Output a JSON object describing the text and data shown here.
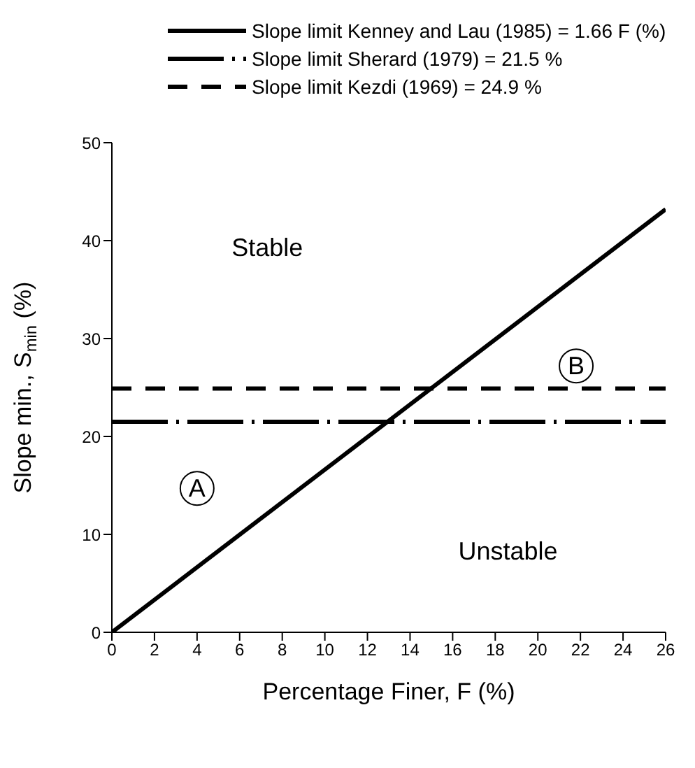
{
  "chart_data": {
    "type": "line",
    "xlabel": "Percentage Finer, F (%)",
    "ylabel": "Slope min., S$_{min}$ (%)",
    "xlim": [
      0,
      26
    ],
    "xticks": [
      0,
      2,
      4,
      6,
      8,
      10,
      12,
      14,
      16,
      18,
      20,
      22,
      24,
      26
    ],
    "ylim": [
      0,
      50
    ],
    "yticks": [
      0,
      10,
      20,
      30,
      40,
      50
    ],
    "series": [
      {
        "name": "Slope limit Kenney and Lau (1985) = 1.66 F (%)",
        "color": "#000000",
        "x": [
          0,
          26
        ],
        "values": [
          0,
          43.2
        ],
        "line_style": "solid"
      }
    ],
    "ref_lines": [
      {
        "axis": "y",
        "value": 21.5,
        "label": "Slope limit Sherard (1979) = 21.5 %",
        "color": "#000000",
        "line_style": "dashdot"
      },
      {
        "axis": "y",
        "value": 24.9,
        "label": "Slope limit Kezdi (1969) = 24.9 %",
        "color": "#000000",
        "line_style": "dashed"
      }
    ],
    "annotations": [
      "Stable",
      "B",
      "A",
      "Unstable"
    ],
    "legend": "top",
    "grid": false,
    "marker": "none"
  }
}
